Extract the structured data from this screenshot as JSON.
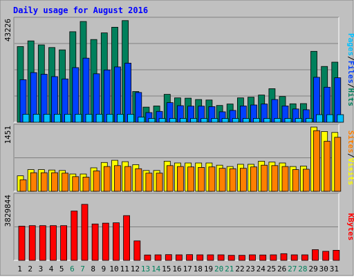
{
  "chart_data": {
    "title": "Daily usage for August 2016",
    "categories": [
      "1",
      "2",
      "3",
      "4",
      "5",
      "6",
      "7",
      "8",
      "9",
      "10",
      "11",
      "12",
      "13",
      "14",
      "15",
      "16",
      "17",
      "18",
      "19",
      "20",
      "21",
      "22",
      "23",
      "24",
      "25",
      "26",
      "27",
      "28",
      "29",
      "30",
      "31"
    ],
    "weekend_days": [
      6,
      7,
      13,
      14,
      20,
      21,
      27,
      28
    ],
    "colors": {
      "frame_bg": "#c0c0c0",
      "plot_bg": "#bfbfbf",
      "title": "#0000ff",
      "hits": "#00805c",
      "files": "#0040ff",
      "pages": "#00c0ff",
      "visits": "#ffff00",
      "sites": "#ff8000",
      "kbytes": "#ff0000",
      "weekend_label": "#00805c",
      "weekday_label": "#000000"
    },
    "panels": [
      {
        "id": "hits-files-pages",
        "type": "bar",
        "ymax_label": "43226",
        "ylim": [
          0,
          43226
        ],
        "legend": [
          {
            "text": "Pages",
            "color": "#00c0ff"
          },
          {
            "text": "/",
            "color": "#000000"
          },
          {
            "text": "Files",
            "color": "#0040ff"
          },
          {
            "text": "/",
            "color": "#000000"
          },
          {
            "text": "Hits",
            "color": "#00805c"
          }
        ],
        "series": [
          {
            "name": "Hits",
            "color": "#00805c",
            "values": [
              32000,
              34400,
              32700,
              31600,
              30600,
              38300,
              42600,
              35000,
              37800,
              40200,
              43000,
              13000,
              6400,
              6900,
              11800,
              10300,
              10200,
              9600,
              9400,
              7100,
              7700,
              10300,
              10600,
              11500,
              14200,
              10900,
              7800,
              7900,
              30000,
              23600,
              25400
            ]
          },
          {
            "name": "Files",
            "color": "#0040ff",
            "values": [
              18000,
              21000,
              20300,
              19300,
              18300,
              23100,
              27100,
              20500,
              22100,
              23400,
              25000,
              12600,
              4100,
              4600,
              8300,
              7000,
              6800,
              6800,
              6600,
              4400,
              5000,
              6900,
              7300,
              7700,
              9600,
              6900,
              5600,
              5300,
              19000,
              14800,
              18800
            ]
          },
          {
            "name": "Pages",
            "color": "#00c0ff",
            "values": [
              3400,
              3400,
              3400,
              3400,
              3400,
              3400,
              3400,
              3400,
              3400,
              3400,
              3400,
              2200,
              1600,
              1600,
              1600,
              1600,
              1600,
              1600,
              1600,
              1600,
              1600,
              1600,
              1600,
              1600,
              1600,
              1600,
              1600,
              1600,
              3200,
              3200,
              3200
            ]
          }
        ]
      },
      {
        "id": "visits-sites",
        "type": "bar",
        "ymax_label": "1451",
        "ylim": [
          0,
          1451
        ],
        "legend": [
          {
            "text": "Sites",
            "color": "#ff8000"
          },
          {
            "text": "/",
            "color": "#000000"
          },
          {
            "text": "Visits",
            "color": "#ffff00"
          }
        ],
        "series": [
          {
            "name": "Visits",
            "color": "#ffff00",
            "values": [
              350,
              490,
              490,
              480,
              470,
              390,
              390,
              530,
              650,
              700,
              670,
              600,
              470,
              470,
              680,
              640,
              640,
              640,
              640,
              590,
              560,
              610,
              610,
              680,
              660,
              640,
              560,
              570,
              1451,
              1350,
              1330
            ]
          },
          {
            "name": "Sites",
            "color": "#ff8000",
            "values": [
              260,
              420,
              420,
              420,
              410,
              330,
              320,
              460,
              560,
              580,
              560,
              510,
              410,
              410,
              580,
              560,
              550,
              540,
              550,
              520,
              510,
              520,
              550,
              590,
              580,
              560,
              490,
              500,
              1370,
              1130,
              1220
            ]
          }
        ]
      },
      {
        "id": "kbytes",
        "type": "bar",
        "ymax_label": "3829844",
        "ylim": [
          0,
          3829844
        ],
        "legend": [
          {
            "text": "KBytes",
            "color": "#ff0000"
          }
        ],
        "series": [
          {
            "name": "KBytes",
            "color": "#ff0000",
            "values": [
              2040000,
              2070000,
              2070000,
              2070000,
              2070000,
              2940000,
              3340000,
              2170000,
              2220000,
              2240000,
              2670000,
              1160000,
              320000,
              330000,
              340000,
              330000,
              340000,
              330000,
              330000,
              330000,
              300000,
              300000,
              330000,
              320000,
              330000,
              400000,
              330000,
              330000,
              640000,
              540000,
              600000
            ]
          }
        ]
      }
    ]
  }
}
